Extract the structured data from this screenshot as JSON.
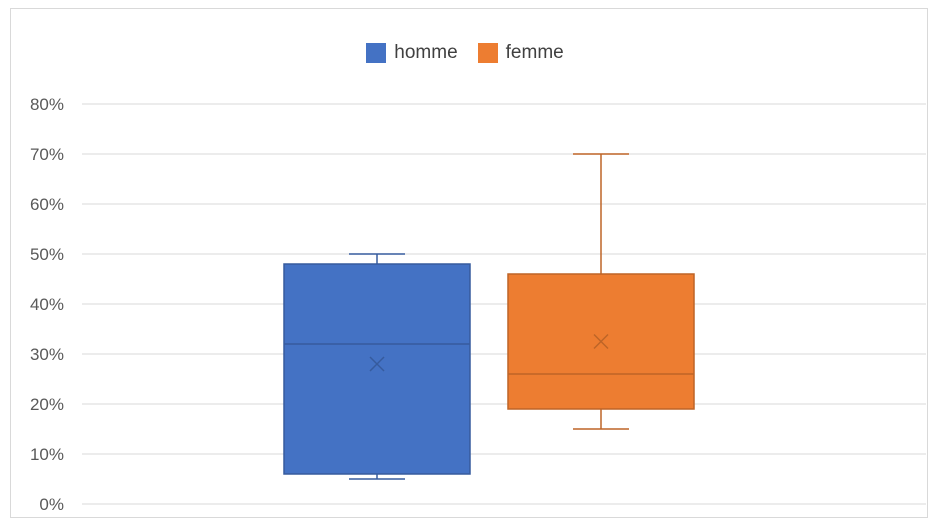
{
  "chart_data": {
    "type": "box",
    "title": "",
    "xlabel": "",
    "ylabel": "",
    "ylim": [
      0,
      80
    ],
    "y_tick_labels": [
      "0%",
      "10%",
      "20%",
      "30%",
      "40%",
      "50%",
      "60%",
      "70%",
      "80%"
    ],
    "y_ticks": [
      0,
      10,
      20,
      30,
      40,
      50,
      60,
      70,
      80
    ],
    "grid": true,
    "legend_position": "top",
    "series": [
      {
        "name": "homme",
        "color": "#4472c4",
        "min": 5,
        "q1": 6,
        "median": 32,
        "q3": 48,
        "max": 50,
        "mean": 28
      },
      {
        "name": "femme",
        "color": "#ed7d31",
        "min": 15,
        "q1": 19,
        "median": 26,
        "q3": 46,
        "max": 70,
        "mean": 32.5
      }
    ]
  }
}
